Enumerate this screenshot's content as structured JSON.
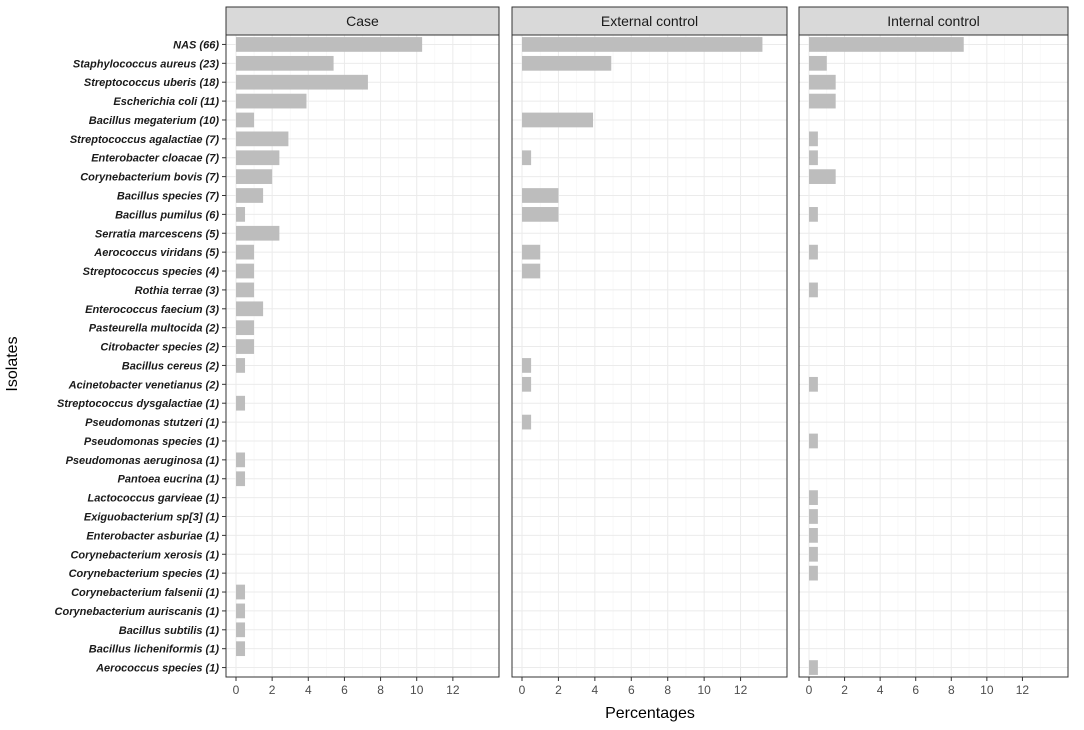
{
  "chart_data": {
    "type": "bar",
    "orientation": "horizontal",
    "xlabel": "Percentages",
    "ylabel": "Isolates",
    "xlim": [
      0,
      14
    ],
    "xticks": [
      "0",
      "2",
      "4",
      "6",
      "8",
      "10",
      "12"
    ],
    "grid": true,
    "bar_color": "#bdbdbd",
    "categories": [
      "NAS (66)",
      "Staphylococcus aureus (23)",
      "Streptococcus uberis (18)",
      "Escherichia coli (11)",
      "Bacillus megaterium (10)",
      "Streptococcus agalactiae (7)",
      "Enterobacter cloacae (7)",
      "Corynebacterium bovis (7)",
      "Bacillus species (7)",
      "Bacillus pumilus (6)",
      "Serratia marcescens (5)",
      "Aerococcus viridans (5)",
      "Streptococcus species (4)",
      "Rothia terrae (3)",
      "Enterococcus faecium (3)",
      "Pasteurella multocida (2)",
      "Citrobacter species (2)",
      "Bacillus cereus (2)",
      "Acinetobacter venetianus (2)",
      "Streptococcus dysgalactiae (1)",
      "Pseudomonas stutzeri (1)",
      "Pseudomonas species (1)",
      "Pseudomonas aeruginosa (1)",
      "Pantoea eucrina (1)",
      "Lactococcus garvieae (1)",
      "Exiguobacterium sp[3] (1)",
      "Enterobacter asburiae (1)",
      "Corynebacterium xerosis (1)",
      "Corynebacterium species (1)",
      "Corynebacterium falsenii (1)",
      "Corynebacterium auriscanis (1)",
      "Bacillus subtilis (1)",
      "Bacillus licheniformis (1)",
      "Aerococcus species (1)"
    ],
    "series": [
      {
        "name": "Case",
        "values": [
          10.3,
          5.4,
          7.3,
          3.9,
          1.0,
          2.9,
          2.4,
          2.0,
          1.5,
          0.5,
          2.4,
          1.0,
          1.0,
          1.0,
          1.5,
          1.0,
          1.0,
          0.5,
          0,
          0.5,
          0,
          0,
          0.5,
          0.5,
          0,
          0,
          0,
          0,
          0,
          0.5,
          0.5,
          0.5,
          0.5,
          0
        ]
      },
      {
        "name": "External control",
        "values": [
          13.2,
          4.9,
          0,
          0,
          3.9,
          0,
          0.5,
          0,
          2.0,
          2.0,
          0,
          1.0,
          1.0,
          0,
          0,
          0,
          0,
          0.5,
          0.5,
          0,
          0.5,
          0,
          0,
          0,
          0,
          0,
          0,
          0,
          0,
          0,
          0,
          0,
          0,
          0
        ]
      },
      {
        "name": "Internal control",
        "values": [
          8.7,
          1.0,
          1.5,
          1.5,
          0,
          0.5,
          0.5,
          1.5,
          0,
          0.5,
          0,
          0.5,
          0,
          0.5,
          0,
          0,
          0,
          0,
          0.5,
          0,
          0,
          0.5,
          0,
          0,
          0.5,
          0.5,
          0.5,
          0.5,
          0.5,
          0,
          0,
          0,
          0,
          0.5
        ]
      }
    ]
  }
}
